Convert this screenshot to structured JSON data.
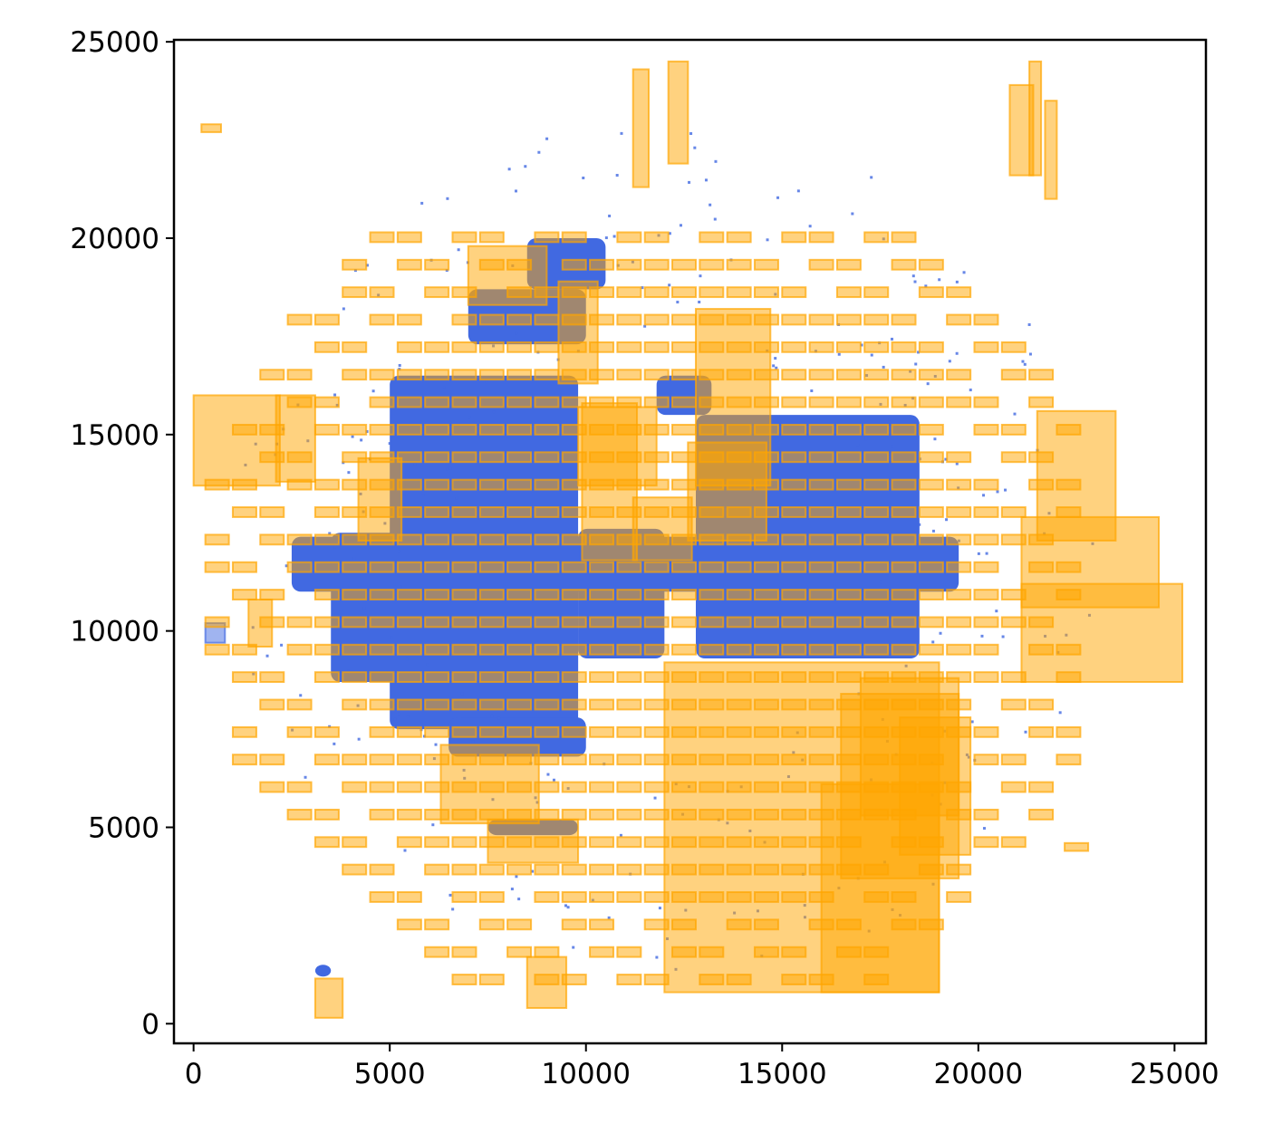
{
  "chart_data": {
    "type": "scatter",
    "title": "",
    "xlabel": "",
    "ylabel": "",
    "xlim": [
      -500,
      25800
    ],
    "ylim": [
      -500,
      25050
    ],
    "xticks": [
      0,
      5000,
      10000,
      15000,
      20000,
      25000
    ],
    "yticks": [
      0,
      5000,
      10000,
      15000,
      20000,
      25000
    ],
    "xtick_labels": [
      "0",
      "5000",
      "10000",
      "15000",
      "20000",
      "25000"
    ],
    "ytick_labels": [
      "0",
      "5000",
      "10000",
      "15000",
      "20000",
      "25000"
    ],
    "grid": false,
    "legend": null,
    "colors": {
      "points": "#4169e1",
      "tiles_fill": "#ffa500",
      "tiles_edge": "#ffa500"
    },
    "series": [
      {
        "kind": "point-cloud-regions",
        "regions": [
          {
            "x": [
              5000,
              9800
            ],
            "y": [
              7500,
              16500
            ]
          },
          {
            "x": [
              3500,
              9800
            ],
            "y": [
              8700,
              12500
            ]
          },
          {
            "x": [
              9800,
              12000
            ],
            "y": [
              9300,
              12600
            ]
          },
          {
            "x": [
              12800,
              18500
            ],
            "y": [
              9300,
              15500
            ]
          },
          {
            "x": [
              2500,
              19500
            ],
            "y": [
              11000,
              12400
            ]
          },
          {
            "x": [
              7000,
              10000
            ],
            "y": [
              17300,
              18700
            ]
          },
          {
            "x": [
              8500,
              10500
            ],
            "y": [
              18700,
              20000
            ]
          },
          {
            "x": [
              6500,
              10000
            ],
            "y": [
              6800,
              7800
            ]
          },
          {
            "x": [
              11800,
              13200
            ],
            "y": [
              15500,
              16500
            ]
          },
          {
            "x": [
              7500,
              9800
            ],
            "y": [
              4800,
              5200
            ]
          },
          {
            "x": [
              3100,
              3500
            ],
            "y": [
              1200,
              1500
            ]
          }
        ]
      },
      {
        "kind": "tiles",
        "rects": [
          [
            300,
            9700,
            500,
            500,
            "point"
          ],
          [
            12000,
            800,
            7000,
            8400
          ],
          [
            16000,
            800,
            3000,
            5300
          ],
          [
            21100,
            8700,
            4100,
            2500
          ],
          [
            21100,
            10600,
            3500,
            2300
          ],
          [
            9900,
            11800,
            1400,
            4000
          ],
          [
            9800,
            13700,
            2000,
            2000
          ],
          [
            12800,
            13700,
            1900,
            4500
          ],
          [
            12600,
            12300,
            2000,
            2500
          ],
          [
            11200,
            11800,
            1500,
            1600
          ],
          [
            9300,
            16300,
            1000,
            2600
          ],
          [
            4200,
            12300,
            1100,
            2100
          ],
          [
            0,
            13700,
            2200,
            2300
          ],
          [
            7000,
            18300,
            2000,
            1500
          ],
          [
            16500,
            3700,
            3000,
            4700
          ],
          [
            17000,
            5300,
            2500,
            3500
          ],
          [
            18000,
            4300,
            1800,
            3500
          ],
          [
            21500,
            12300,
            2000,
            3300
          ],
          [
            22200,
            4400,
            600,
            200
          ],
          [
            3100,
            150,
            700,
            1000
          ],
          [
            8500,
            400,
            1000,
            1300
          ],
          [
            6300,
            5100,
            2500,
            2000
          ],
          [
            7500,
            4100,
            2300,
            1100
          ],
          [
            2100,
            13800,
            1000,
            2200
          ],
          [
            1400,
            9600,
            600,
            1200
          ],
          [
            200,
            22700,
            500,
            200
          ],
          [
            11200,
            21300,
            400,
            3000
          ],
          [
            12100,
            21900,
            500,
            2600
          ],
          [
            20800,
            21600,
            600,
            2300
          ],
          [
            21300,
            21600,
            300,
            2900
          ],
          [
            21700,
            21000,
            300,
            2500
          ]
        ]
      }
    ]
  }
}
